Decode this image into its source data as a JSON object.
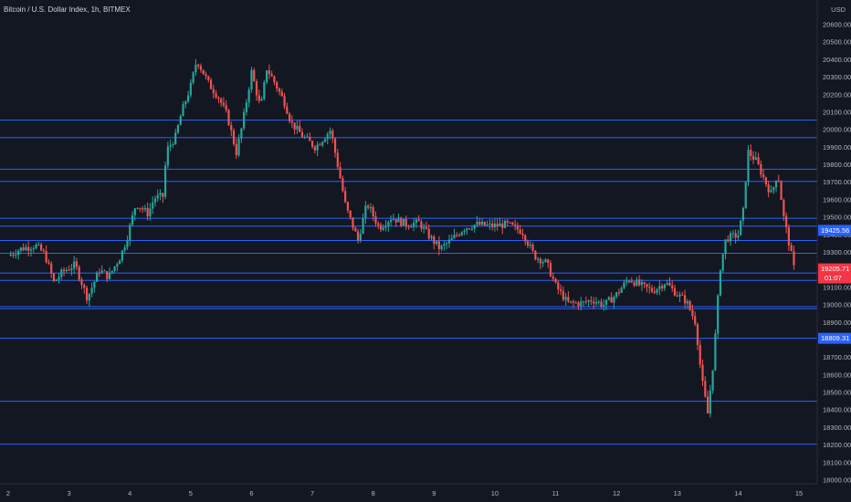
{
  "header": {
    "symbol_title": "Bitcoin / U.S. Dollar Index, 1h, BITMEX",
    "currency": "USD"
  },
  "colors": {
    "background": "#131722",
    "up": "#26a69a",
    "down": "#ef5350",
    "level_line": "#2962ff",
    "price_tag": "#f23645"
  },
  "chart_data": {
    "type": "candlestick",
    "title": "Bitcoin / U.S. Dollar Index, 1h, BITMEX",
    "ylim": [
      17990,
      20680
    ],
    "y_ticks": [
      20600,
      20500,
      20400,
      20300,
      20200,
      20100,
      20000,
      19900,
      19800,
      19700,
      19600,
      19500,
      19400,
      19300,
      19200,
      19100,
      19000,
      18900,
      18800,
      18700,
      18600,
      18500,
      18400,
      18300,
      18200,
      18100,
      18000
    ],
    "x_ticks": [
      "2",
      "3",
      "4",
      "5",
      "6",
      "7",
      "8",
      "9",
      "10",
      "11",
      "12",
      "13",
      "14",
      "15"
    ],
    "x_range": [
      1.86,
      15.35
    ],
    "horizontal_levels": [
      20055,
      19955,
      19775,
      19705,
      19495,
      19450,
      19368,
      19295,
      19182,
      19140,
      18990,
      18978,
      18809.31,
      18450,
      18205
    ],
    "level_labels": [
      {
        "price": 19425.56,
        "text": "19425.56"
      },
      {
        "price": 18809.31,
        "text": "18809.31"
      }
    ],
    "last_price": {
      "price": 19205.71,
      "text": "19205.71",
      "countdown": "01:07"
    },
    "price_path": [
      [
        2.0,
        19280
      ],
      [
        2.2,
        19320
      ],
      [
        2.45,
        19340
      ],
      [
        2.6,
        19290
      ],
      [
        2.75,
        19130
      ],
      [
        2.9,
        19190
      ],
      [
        3.1,
        19230
      ],
      [
        3.3,
        19040
      ],
      [
        3.5,
        19200
      ],
      [
        3.65,
        19160
      ],
      [
        3.85,
        19280
      ],
      [
        3.95,
        19380
      ],
      [
        4.1,
        19580
      ],
      [
        4.3,
        19520
      ],
      [
        4.4,
        19610
      ],
      [
        4.55,
        19620
      ],
      [
        4.6,
        19880
      ],
      [
        4.75,
        19960
      ],
      [
        4.85,
        20100
      ],
      [
        5.0,
        20250
      ],
      [
        5.1,
        20400
      ],
      [
        5.3,
        20260
      ],
      [
        5.45,
        20190
      ],
      [
        5.6,
        20080
      ],
      [
        5.75,
        19870
      ],
      [
        5.85,
        20030
      ],
      [
        6.0,
        20330
      ],
      [
        6.15,
        20120
      ],
      [
        6.25,
        20350
      ],
      [
        6.35,
        20290
      ],
      [
        6.55,
        20150
      ],
      [
        6.65,
        20040
      ],
      [
        6.85,
        19960
      ],
      [
        7.05,
        19900
      ],
      [
        7.2,
        19960
      ],
      [
        7.3,
        20000
      ],
      [
        7.45,
        19740
      ],
      [
        7.55,
        19560
      ],
      [
        7.75,
        19370
      ],
      [
        7.9,
        19580
      ],
      [
        8.1,
        19440
      ],
      [
        8.3,
        19500
      ],
      [
        8.55,
        19460
      ],
      [
        8.75,
        19470
      ],
      [
        8.95,
        19380
      ],
      [
        9.1,
        19320
      ],
      [
        9.25,
        19360
      ],
      [
        9.5,
        19440
      ],
      [
        9.7,
        19460
      ],
      [
        9.95,
        19450
      ],
      [
        10.2,
        19460
      ],
      [
        10.45,
        19420
      ],
      [
        10.65,
        19280
      ],
      [
        10.85,
        19240
      ],
      [
        11.0,
        19110
      ],
      [
        11.2,
        19010
      ],
      [
        11.45,
        19010
      ],
      [
        11.6,
        19030
      ],
      [
        11.8,
        19000
      ],
      [
        12.0,
        19060
      ],
      [
        12.2,
        19150
      ],
      [
        12.4,
        19110
      ],
      [
        12.6,
        19080
      ],
      [
        12.8,
        19130
      ],
      [
        13.0,
        19060
      ],
      [
        13.15,
        19020
      ],
      [
        13.3,
        18900
      ],
      [
        13.4,
        18580
      ],
      [
        13.5,
        18380
      ],
      [
        13.6,
        18700
      ],
      [
        13.7,
        19200
      ],
      [
        13.8,
        19380
      ],
      [
        14.0,
        19400
      ],
      [
        14.1,
        19560
      ],
      [
        14.15,
        19880
      ],
      [
        14.3,
        19820
      ],
      [
        14.45,
        19700
      ],
      [
        14.55,
        19630
      ],
      [
        14.65,
        19760
      ],
      [
        14.75,
        19500
      ],
      [
        14.85,
        19330
      ],
      [
        14.92,
        19205
      ]
    ]
  }
}
